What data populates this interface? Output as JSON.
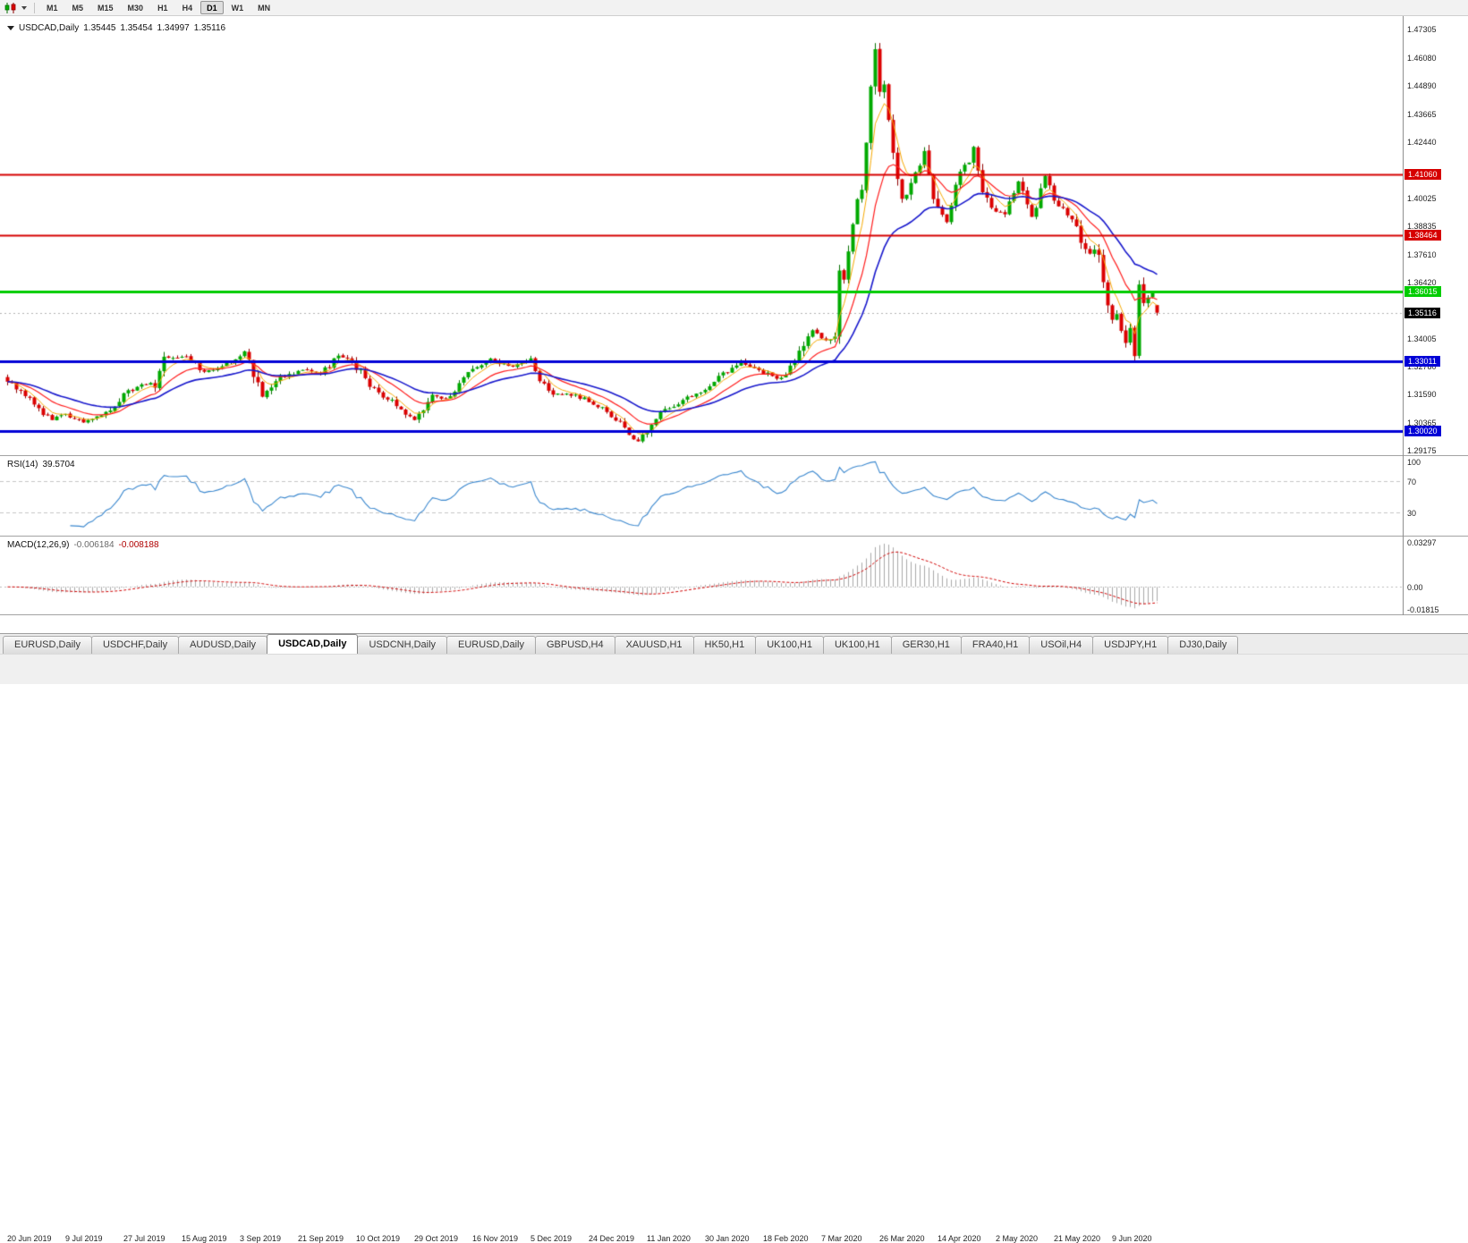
{
  "toolbar": {
    "timeframes": [
      "M1",
      "M5",
      "M15",
      "M30",
      "H1",
      "H4",
      "D1",
      "W1",
      "MN"
    ],
    "active_timeframe": "D1"
  },
  "chart": {
    "title": {
      "symbol": "USDCAD,Daily",
      "open": "1.35445",
      "high": "1.35454",
      "low": "1.34997",
      "close": "1.35116"
    },
    "price_axis_ticks": [
      "1.47305",
      "1.46080",
      "1.44890",
      "1.43665",
      "1.42440",
      "1.40025",
      "1.38835",
      "1.37610",
      "1.36420",
      "1.34005",
      "1.32780",
      "1.31590",
      "1.30365",
      "1.29175"
    ],
    "levels": [
      {
        "label": "1.41060",
        "color": "#D60000",
        "thickness": 2,
        "type": "resistance"
      },
      {
        "label": "1.38464",
        "color": "#D60000",
        "thickness": 2,
        "type": "resistance"
      },
      {
        "label": "1.36015",
        "color": "#00CC00",
        "thickness": 3,
        "type": "pivot"
      },
      {
        "label": "1.33011",
        "color": "#0000D6",
        "thickness": 3,
        "type": "support"
      },
      {
        "label": "1.30020",
        "color": "#0000D6",
        "thickness": 3,
        "type": "support"
      }
    ],
    "current_price": {
      "label": "1.35116",
      "badge_color": "#000000"
    }
  },
  "chart_data": {
    "type": "candlestick",
    "symbol": "USDCAD",
    "timeframe": "Daily",
    "bar_count": 258,
    "y_axis_range": [
      1.28985,
      1.47883
    ],
    "up_color": "#00AA00",
    "down_color": "#DC0000",
    "price_anchors": [
      [
        0,
        1.3225
      ],
      [
        4,
        1.316
      ],
      [
        7,
        1.309
      ],
      [
        10,
        1.3055
      ],
      [
        13,
        1.3075
      ],
      [
        17,
        1.304
      ],
      [
        21,
        1.3068
      ],
      [
        26,
        1.3155
      ],
      [
        30,
        1.321
      ],
      [
        33,
        1.3195
      ],
      [
        35,
        1.3305
      ],
      [
        40,
        1.333
      ],
      [
        44,
        1.3255
      ],
      [
        48,
        1.328
      ],
      [
        51,
        1.3315
      ],
      [
        53,
        1.3345
      ],
      [
        57,
        1.315
      ],
      [
        61,
        1.323
      ],
      [
        66,
        1.327
      ],
      [
        70,
        1.3245
      ],
      [
        74,
        1.3325
      ],
      [
        77,
        1.3305
      ],
      [
        81,
        1.3195
      ],
      [
        86,
        1.3125
      ],
      [
        91,
        1.305
      ],
      [
        93,
        1.3085
      ],
      [
        95,
        1.3165
      ],
      [
        98,
        1.3135
      ],
      [
        103,
        1.3245
      ],
      [
        108,
        1.331
      ],
      [
        113,
        1.3275
      ],
      [
        117,
        1.3305
      ],
      [
        121,
        1.3165
      ],
      [
        126,
        1.316
      ],
      [
        131,
        1.3125
      ],
      [
        136,
        1.3055
      ],
      [
        139,
        1.2985
      ],
      [
        141,
        1.296
      ],
      [
        146,
        1.3075
      ],
      [
        151,
        1.3135
      ],
      [
        156,
        1.3185
      ],
      [
        159,
        1.3235
      ],
      [
        164,
        1.33
      ],
      [
        169,
        1.3255
      ],
      [
        173,
        1.3225
      ],
      [
        177,
        1.333
      ],
      [
        180,
        1.343
      ],
      [
        183,
        1.339
      ],
      [
        185,
        1.3425
      ],
      [
        186,
        1.37
      ],
      [
        187,
        1.364
      ],
      [
        189,
        1.392
      ],
      [
        191,
        1.405
      ],
      [
        192,
        1.424
      ],
      [
        193,
        1.449
      ],
      [
        194,
        1.462
      ],
      [
        195,
        1.444
      ],
      [
        196,
        1.449
      ],
      [
        198,
        1.418
      ],
      [
        200,
        1.399
      ],
      [
        202,
        1.406
      ],
      [
        205,
        1.42
      ],
      [
        207,
        1.402
      ],
      [
        210,
        1.389
      ],
      [
        212,
        1.409
      ],
      [
        215,
        1.416
      ],
      [
        216,
        1.421
      ],
      [
        218,
        1.401
      ],
      [
        221,
        1.3955
      ],
      [
        223,
        1.394
      ],
      [
        226,
        1.407
      ],
      [
        229,
        1.392
      ],
      [
        232,
        1.41
      ],
      [
        235,
        1.396
      ],
      [
        238,
        1.393
      ],
      [
        241,
        1.378
      ],
      [
        244,
        1.376
      ],
      [
        246,
        1.352
      ],
      [
        248,
        1.349
      ],
      [
        250,
        1.339
      ],
      [
        251,
        1.343
      ],
      [
        252,
        1.334
      ],
      [
        253,
        1.362
      ],
      [
        254,
        1.3545
      ],
      [
        255,
        1.356
      ],
      [
        256,
        1.36
      ],
      [
        257,
        1.35116
      ]
    ],
    "last_candle": {
      "open": 1.35445,
      "high": 1.35454,
      "low": 1.34997,
      "close": 1.35116
    },
    "spike_high": {
      "index": 194,
      "price": 1.4672
    },
    "spike_low": {
      "index": 252,
      "price": 1.3316
    },
    "moving_averages": [
      {
        "period": 5,
        "method": "ema",
        "color": "#F5A800",
        "width": 1
      },
      {
        "period": 13,
        "method": "ema",
        "color": "#FF1E1E",
        "width": 1.2
      },
      {
        "period": 28,
        "method": "ema",
        "color": "#1818CC",
        "width": 1.6
      }
    ],
    "time_labels": [
      "20 Jun 2019",
      "9 Jul 2019",
      "27 Jul 2019",
      "15 Aug 2019",
      "3 Sep 2019",
      "21 Sep 2019",
      "10 Oct 2019",
      "29 Oct 2019",
      "16 Nov 2019",
      "5 Dec 2019",
      "24 Dec 2019",
      "11 Jan 2020",
      "30 Jan 2020",
      "18 Feb 2020",
      "7 Mar 2020",
      "26 Mar 2020",
      "14 Apr 2020",
      "2 May 2020",
      "21 May 2020",
      "9 Jun 2020"
    ],
    "rsi": {
      "label": "RSI(14)",
      "value": "39.5704",
      "levels": [
        "100",
        "70",
        "30"
      ],
      "line_color": "#3A87CE"
    },
    "macd": {
      "label": "MACD(12,26,9)",
      "value": "-0.006184",
      "signal": "-0.008188",
      "axis_labels": [
        "0.03297",
        "0.00",
        "-0.01815"
      ],
      "histogram_color": "#A8A8A8",
      "signal_color": "#D00000"
    }
  },
  "tabs": {
    "active_index": 3,
    "items": [
      "EURUSD,Daily",
      "USDCHF,Daily",
      "AUDUSD,Daily",
      "USDCAD,Daily",
      "USDCNH,Daily",
      "EURUSD,Daily",
      "GBPUSD,H4",
      "XAUUSD,H1",
      "HK50,H1",
      "UK100,H1",
      "UK100,H1",
      "GER30,H1",
      "FRA40,H1",
      "USOil,H4",
      "USDJPY,H1",
      "DJ30,Daily"
    ]
  }
}
